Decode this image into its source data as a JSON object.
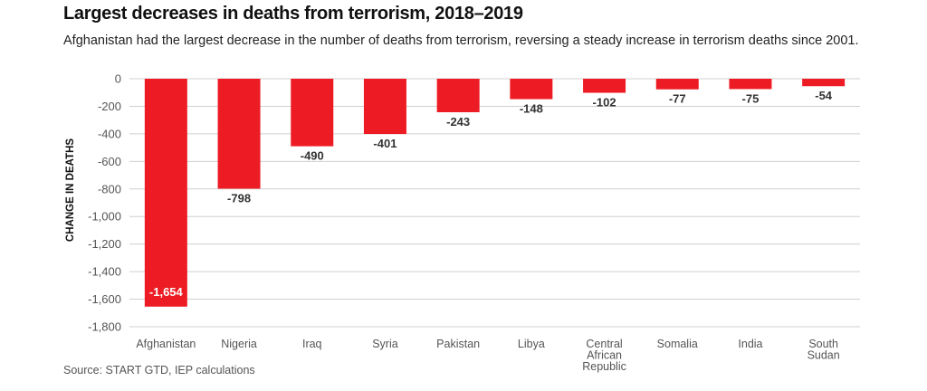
{
  "title": "Largest decreases in deaths from terrorism, 2018–2019",
  "subtitle": "Afghanistan had the largest decrease in the number of deaths from terrorism, reversing a steady increase in terrorism deaths since 2001.",
  "source": "Source: START GTD, IEP calculations",
  "chart_data": {
    "type": "bar",
    "categories": [
      "Afghanistan",
      "Nigeria",
      "Iraq",
      "Syria",
      "Pakistan",
      "Libya",
      "Central African Republic",
      "Somalia",
      "India",
      "South Sudan"
    ],
    "values": [
      -1654,
      -798,
      -490,
      -401,
      -243,
      -148,
      -102,
      -77,
      -75,
      -54
    ],
    "data_labels": [
      "-1,654",
      "-798",
      "-490",
      "-401",
      "-243",
      "-148",
      "-102",
      "-77",
      "-75",
      "-54"
    ],
    "ylabel": "CHANGE IN DEATHS",
    "ylim": [
      -1800,
      0
    ],
    "yticks": [
      0,
      -200,
      -400,
      -600,
      -800,
      -1000,
      -1200,
      -1400,
      -1600,
      -1800
    ],
    "ytick_labels": [
      "0",
      "-200",
      "-400",
      "-600",
      "-800",
      "-1,000",
      "-1,200",
      "-1,400",
      "-1,600",
      "-1,800"
    ],
    "grid": true,
    "bar_color": "#ed1c24"
  }
}
